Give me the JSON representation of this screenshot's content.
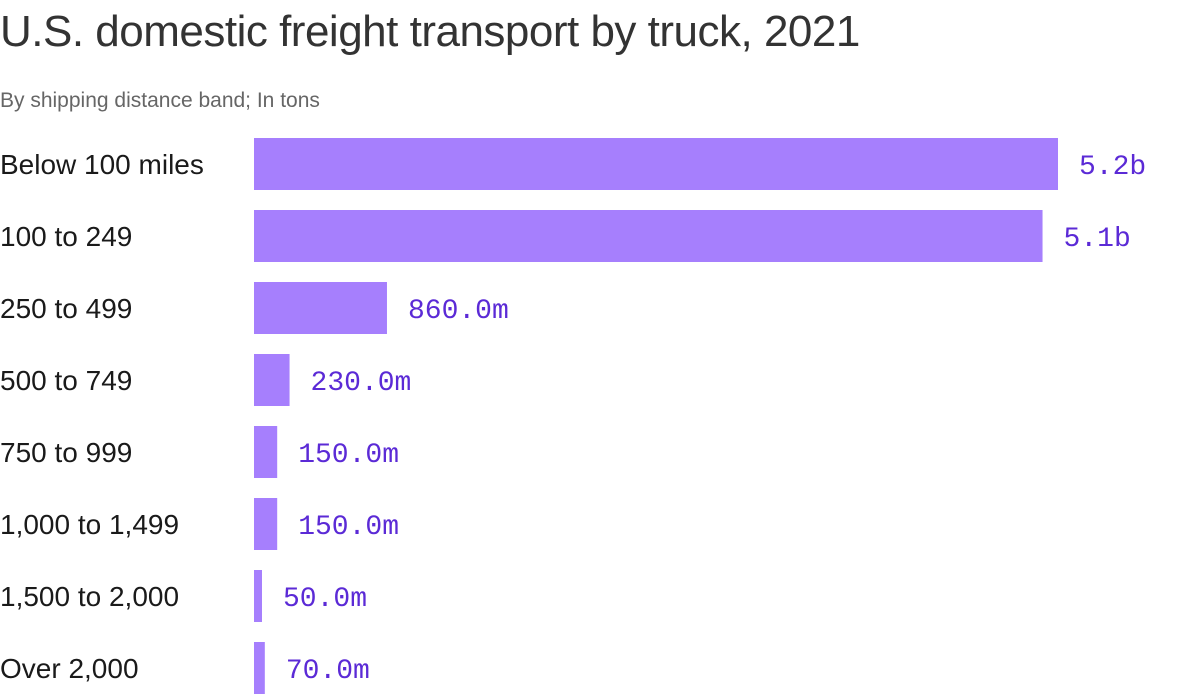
{
  "chart_data": {
    "type": "bar",
    "orientation": "horizontal",
    "title": "U.S. domestic freight transport by truck, 2021",
    "subtitle": "By shipping distance band; In tons",
    "categories": [
      "Below 100 miles",
      "100 to 249",
      "250 to 499",
      "500 to 749",
      "750 to 999",
      "1,000 to 1,499",
      "1,500 to 2,000",
      "Over 2,000"
    ],
    "values": [
      5200000000,
      5100000000,
      860000000,
      230000000,
      150000000,
      150000000,
      50000000,
      70000000
    ],
    "value_labels": [
      "5.2b",
      "5.1b",
      "860.0m",
      "230.0m",
      "150.0m",
      "150.0m",
      "50.0m",
      "70.0m"
    ],
    "bar_color": "#a67ffd",
    "label_color": "#5b2ad6",
    "xlim": [
      0,
      5200000000
    ],
    "grid": false,
    "legend": "none"
  }
}
